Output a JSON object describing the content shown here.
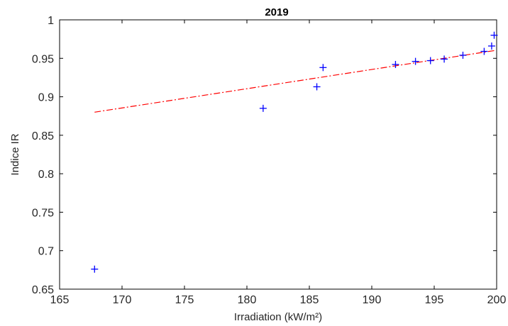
{
  "chart_data": {
    "type": "scatter",
    "title": "2019",
    "xlabel": "Irradiation (kW/m²)",
    "ylabel": "Indice IR",
    "xlim": [
      165,
      200
    ],
    "ylim": [
      0.65,
      1
    ],
    "xticks": [
      "165",
      "170",
      "175",
      "180",
      "185",
      "190",
      "195",
      "200"
    ],
    "yticks": [
      "0.65",
      "0.7",
      "0.75",
      "0.8",
      "0.85",
      "0.9",
      "0.95",
      "1"
    ],
    "grid": false,
    "marker_color": "#0000ff",
    "fit_color": "#ff0000",
    "points": [
      {
        "x": 167.8,
        "y": 0.676
      },
      {
        "x": 181.3,
        "y": 0.885
      },
      {
        "x": 185.6,
        "y": 0.913
      },
      {
        "x": 186.1,
        "y": 0.938
      },
      {
        "x": 191.9,
        "y": 0.942
      },
      {
        "x": 193.5,
        "y": 0.946
      },
      {
        "x": 194.7,
        "y": 0.947
      },
      {
        "x": 195.8,
        "y": 0.949
      },
      {
        "x": 197.3,
        "y": 0.954
      },
      {
        "x": 199.0,
        "y": 0.959
      },
      {
        "x": 199.6,
        "y": 0.966
      },
      {
        "x": 199.8,
        "y": 0.98
      }
    ],
    "fit_line": {
      "x": [
        167.8,
        199.8
      ],
      "y": [
        0.88,
        0.96
      ]
    }
  }
}
